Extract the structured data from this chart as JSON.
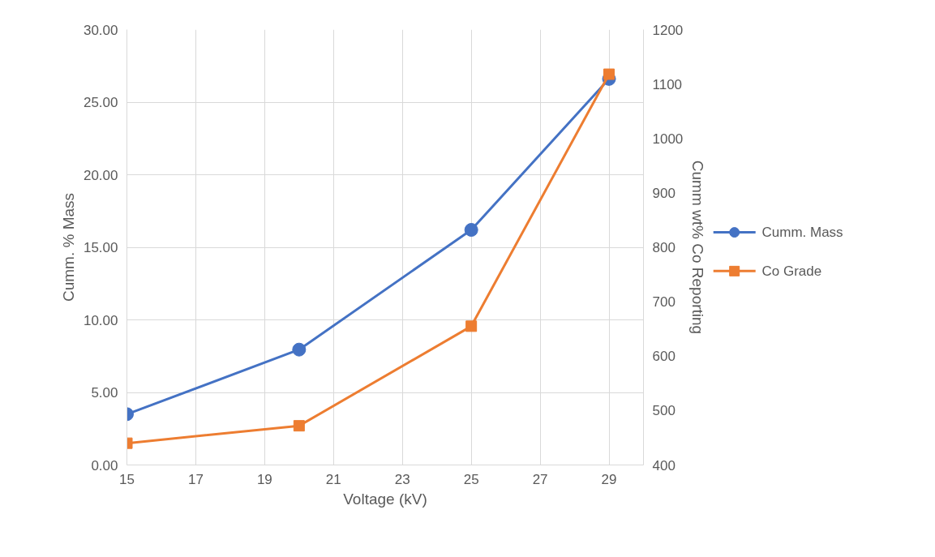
{
  "chart_data": {
    "type": "line",
    "xlabel": "Voltage (kV)",
    "ylabel": "Cumm. % Mass",
    "y2label": "Cumm wt% Co Reporting",
    "x": [
      15,
      20,
      25,
      29
    ],
    "series": [
      {
        "name": "Cumm. Mass",
        "color": "#4472c4",
        "values": [
          3.5,
          7.95,
          16.2,
          26.6
        ],
        "marker": "circle"
      },
      {
        "name": "Co Grade",
        "color": "#ed7d31",
        "values": [
          440,
          472,
          655,
          1118
        ],
        "axis": "y2",
        "marker": "square"
      }
    ],
    "xlim": [
      15,
      30
    ],
    "xticks": [
      15,
      17,
      19,
      21,
      23,
      25,
      27,
      29
    ],
    "ylim": [
      0,
      30
    ],
    "yticks": [
      {
        "value": 0,
        "label": "0.00"
      },
      {
        "value": 5,
        "label": "5.00"
      },
      {
        "value": 10,
        "label": "10.00"
      },
      {
        "value": 15,
        "label": "15.00"
      },
      {
        "value": 20,
        "label": "20.00"
      },
      {
        "value": 25,
        "label": "25.00"
      },
      {
        "value": 30,
        "label": "30.00"
      }
    ],
    "y2lim": [
      400,
      1200
    ],
    "y2ticks": [
      400,
      500,
      600,
      700,
      800,
      900,
      1000,
      1100,
      1200
    ],
    "grid": true,
    "legend": "right",
    "line_style": "solid"
  }
}
